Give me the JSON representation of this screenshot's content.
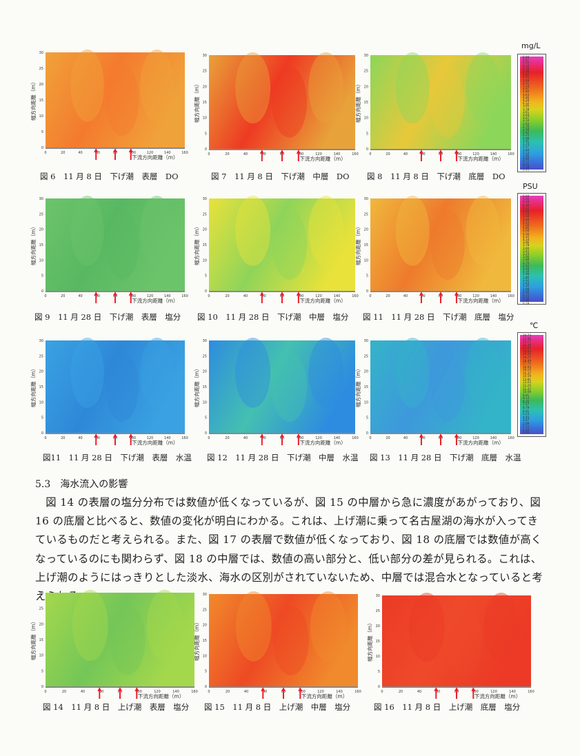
{
  "colorbars": [
    {
      "id": "do",
      "unit": "mg/L",
      "ticks": [
        "6.84",
        "6.67",
        "6.50",
        "6.33",
        "6.16",
        "5.99",
        "5.82",
        "5.65",
        "5.48",
        "5.31",
        "5.14",
        "4.97",
        "4.80",
        "4.63",
        "4.46",
        "4.29",
        "4.12",
        "3.95",
        "3.78",
        "3.61",
        "3.44",
        "3.27",
        "3.10",
        "2.93",
        "2.76",
        "2.59",
        "2.42",
        "2.25",
        "2.08",
        "1.91",
        "1.74",
        "1.57",
        "1.40",
        "1.23",
        "1.06",
        "0.89",
        "0.72",
        "0.55",
        "0.38",
        "0.21"
      ]
    },
    {
      "id": "psu",
      "unit": "PSU",
      "ticks": [
        "6.84",
        "6.66",
        "6.48",
        "6.30",
        "6.12",
        "5.94",
        "5.76",
        "5.58",
        "5.40",
        "5.22",
        "5.04",
        "4.86",
        "4.68",
        "4.50",
        "4.32",
        "4.14",
        "3.96",
        "3.78",
        "3.60",
        "3.42",
        "3.24",
        "3.06",
        "2.88",
        "2.70",
        "2.52",
        "2.34",
        "2.16",
        "1.98",
        "1.80",
        "1.62",
        "1.44",
        "1.26",
        "1.08",
        "0.90",
        "0.72",
        "0.54",
        "0.36",
        "0.18"
      ]
    },
    {
      "id": "temp",
      "unit": "℃",
      "ticks": [
        "24.73",
        "23.95",
        "23.17",
        "22.39",
        "21.61",
        "20.83",
        "20.05",
        "19.27",
        "18.49",
        "17.71",
        "16.93",
        "16.15",
        "15.37",
        "14.59",
        "13.81",
        "13.03",
        "12.25",
        "11.47",
        "10.69",
        "9.91",
        "9.13",
        "8.35",
        "7.57",
        "6.79",
        "6.01",
        "5.23",
        "4.45",
        "3.67",
        "2.89",
        "2.11",
        "1.33",
        "0.55"
      ]
    }
  ],
  "axes": {
    "y_label": "幅方向距離（m）",
    "x_label": "下流方向距離（m）",
    "x_ticks": [
      "0",
      "20",
      "40",
      "60",
      "80",
      "100",
      "120",
      "140",
      "160"
    ],
    "y_ticks": [
      "0",
      "5",
      "10",
      "15",
      "20",
      "25",
      "30"
    ]
  },
  "figures": [
    {
      "id": "fig6",
      "caption": "図 6　11 月 8 日　下げ潮　表層　DO",
      "palette": "orange_uniform"
    },
    {
      "id": "fig7",
      "caption": "図 7　11 月 8 日　下げ潮　中層　DO",
      "palette": "red_yellow"
    },
    {
      "id": "fig8",
      "caption": "図 8　11 月 8 日　下げ潮　底層　DO",
      "palette": "green_yellow"
    },
    {
      "id": "fig9",
      "caption": "図 9　11 月 28 日　下げ潮　表層　塩分",
      "palette": "green_uniform"
    },
    {
      "id": "fig10",
      "caption": "図 10　11 月 28 日　下げ潮　中層　塩分",
      "palette": "yellow_green"
    },
    {
      "id": "fig11a",
      "caption": "図 11　11 月 28 日　下げ潮　底層　塩分",
      "palette": "orange_yellow"
    },
    {
      "id": "fig11b",
      "caption": "図11　11 月 28 日　下げ潮　表層　水温",
      "palette": "blue_uniform"
    },
    {
      "id": "fig12",
      "caption": "図 12　11 月 28 日　下げ潮　中層　水温",
      "palette": "blue_cyan"
    },
    {
      "id": "fig13",
      "caption": "図 13　11 月 28 日　下げ潮　底層　水温",
      "palette": "cyan_teal"
    },
    {
      "id": "fig14",
      "caption": "図 14　11 月 8 日　上げ潮　表層　塩分",
      "palette": "green_light"
    },
    {
      "id": "fig15",
      "caption": "図 15　11 月 8 日　上げ潮　中層　塩分",
      "palette": "red_orange"
    },
    {
      "id": "fig16",
      "caption": "図 16　11 月 8 日　上げ潮　底層　塩分",
      "palette": "red_uniform"
    }
  ],
  "palettes": {
    "orange_uniform": [
      "#f0a23a",
      "#f47a2e"
    ],
    "red_yellow": [
      "#e8a23a",
      "#ee3a22"
    ],
    "green_yellow": [
      "#8cd65a",
      "#e8c83a"
    ],
    "green_uniform": [
      "#6cc46a",
      "#58b862"
    ],
    "yellow_green": [
      "#e8e23a",
      "#8fd45a"
    ],
    "orange_yellow": [
      "#f0b83c",
      "#ee7a2c"
    ],
    "blue_uniform": [
      "#3aa2e2",
      "#2e88d8"
    ],
    "blue_cyan": [
      "#2e8ce0",
      "#44c0b0"
    ],
    "cyan_teal": [
      "#34b4c8",
      "#3e98dc"
    ],
    "green_light": [
      "#a4d84c",
      "#74c658"
    ],
    "red_orange": [
      "#f08a2c",
      "#ee4a24"
    ],
    "red_uniform": [
      "#ec3a26",
      "#ee4a2a"
    ]
  },
  "arrow_color": "#e8202a",
  "section": {
    "heading": "5.3　海水流入の影響",
    "paragraph": "図 14 の表層の塩分分布では数値が低くなっているが、図 15 の中層から急に濃度があがっており、図 16 の底層と比べると、数値の変化が明白にわかる。これは、上げ潮に乗って名古屋湖の海水が入ってきているものだと考えられる。また、図 17 の表層で数値が低くなっており、図 18 の底層では数値が高くなっているのにも関わらず、図 18 の中層では、数値の高い部分と、低い部分の差が見られる。これは、上げ潮のようにはっきりとした淡水、海水の区別がされていないため、中層では混合水となっていると考えられる。"
  }
}
